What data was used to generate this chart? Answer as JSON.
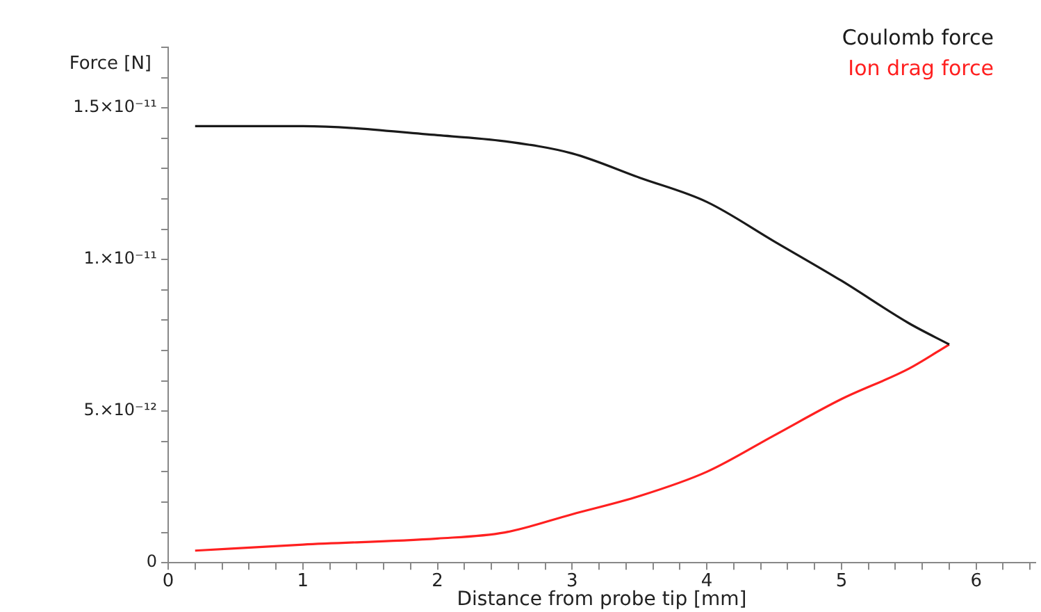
{
  "chart_data": {
    "type": "line",
    "xlabel": "Distance from probe tip [mm]",
    "ylabel": "Force [N]",
    "legend": "top right",
    "grid": false,
    "marker": "none",
    "line_style": "solid",
    "xlim": [
      0,
      6.44
    ],
    "ylim": [
      0,
      1.7e-11
    ],
    "xticks": [
      0,
      {
        "value": 0.2,
        "label": null
      },
      {
        "value": 0.4,
        "label": null
      },
      {
        "value": 0.6,
        "label": null
      },
      {
        "value": 0.8,
        "label": null
      },
      1,
      {
        "value": 1.2,
        "label": null
      },
      {
        "value": 1.4,
        "label": null
      },
      {
        "value": 1.6,
        "label": null
      },
      {
        "value": 1.8,
        "label": null
      },
      2,
      {
        "value": 2.2,
        "label": null
      },
      {
        "value": 2.4,
        "label": null
      },
      {
        "value": 2.6,
        "label": null
      },
      {
        "value": 2.8,
        "label": null
      },
      3,
      {
        "value": 3.2,
        "label": null
      },
      {
        "value": 3.4,
        "label": null
      },
      {
        "value": 3.6,
        "label": null
      },
      {
        "value": 3.8,
        "label": null
      },
      4,
      {
        "value": 4.2,
        "label": null
      },
      {
        "value": 4.4,
        "label": null
      },
      {
        "value": 4.6,
        "label": null
      },
      {
        "value": 4.8,
        "label": null
      },
      5,
      {
        "value": 5.2,
        "label": null
      },
      {
        "value": 5.4,
        "label": null
      },
      {
        "value": 5.6,
        "label": null
      },
      {
        "value": 5.8,
        "label": null
      },
      6,
      {
        "value": 6.2,
        "label": null
      },
      {
        "value": 6.4,
        "label": null
      }
    ],
    "yticks": [
      {
        "value": 0,
        "label": "0"
      },
      {
        "value": 1e-12,
        "label": null
      },
      {
        "value": 2e-12,
        "label": null
      },
      {
        "value": 3e-12,
        "label": null
      },
      {
        "value": 4e-12,
        "label": null
      },
      {
        "value": 5e-12,
        "label": "5.×10⁻¹²"
      },
      {
        "value": 6e-12,
        "label": null
      },
      {
        "value": 7e-12,
        "label": null
      },
      {
        "value": 8e-12,
        "label": null
      },
      {
        "value": 9e-12,
        "label": null
      },
      {
        "value": 1e-11,
        "label": "1.×10⁻¹¹"
      },
      {
        "value": 1.1e-11,
        "label": null
      },
      {
        "value": 1.2e-11,
        "label": null
      },
      {
        "value": 1.3e-11,
        "label": null
      },
      {
        "value": 1.4e-11,
        "label": null
      },
      {
        "value": 1.5e-11,
        "label": "1.5×10⁻¹¹"
      },
      {
        "value": 1.6e-11,
        "label": null
      },
      {
        "value": 1.7e-11,
        "label": null
      }
    ],
    "x": [
      0.2,
      1,
      2,
      2.5,
      3,
      3.5,
      4,
      4.5,
      5,
      5.5,
      5.8
    ],
    "series": [
      {
        "name": "Coulomb force",
        "color": "#1a1a1a",
        "values": [
          1.44e-11,
          1.44e-11,
          1.41e-11,
          1.39e-11,
          1.35e-11,
          1.27e-11,
          1.19e-11,
          1.06e-11,
          9.3e-12,
          7.9e-12,
          7.2e-12
        ]
      },
      {
        "name": "Ion drag force",
        "color": "#ff2020",
        "values": [
          4e-13,
          6e-13,
          8e-13,
          1e-12,
          1.6e-12,
          2.2e-12,
          3e-12,
          4.2e-12,
          5.4e-12,
          6.4e-12,
          7.2e-12
        ]
      }
    ]
  }
}
